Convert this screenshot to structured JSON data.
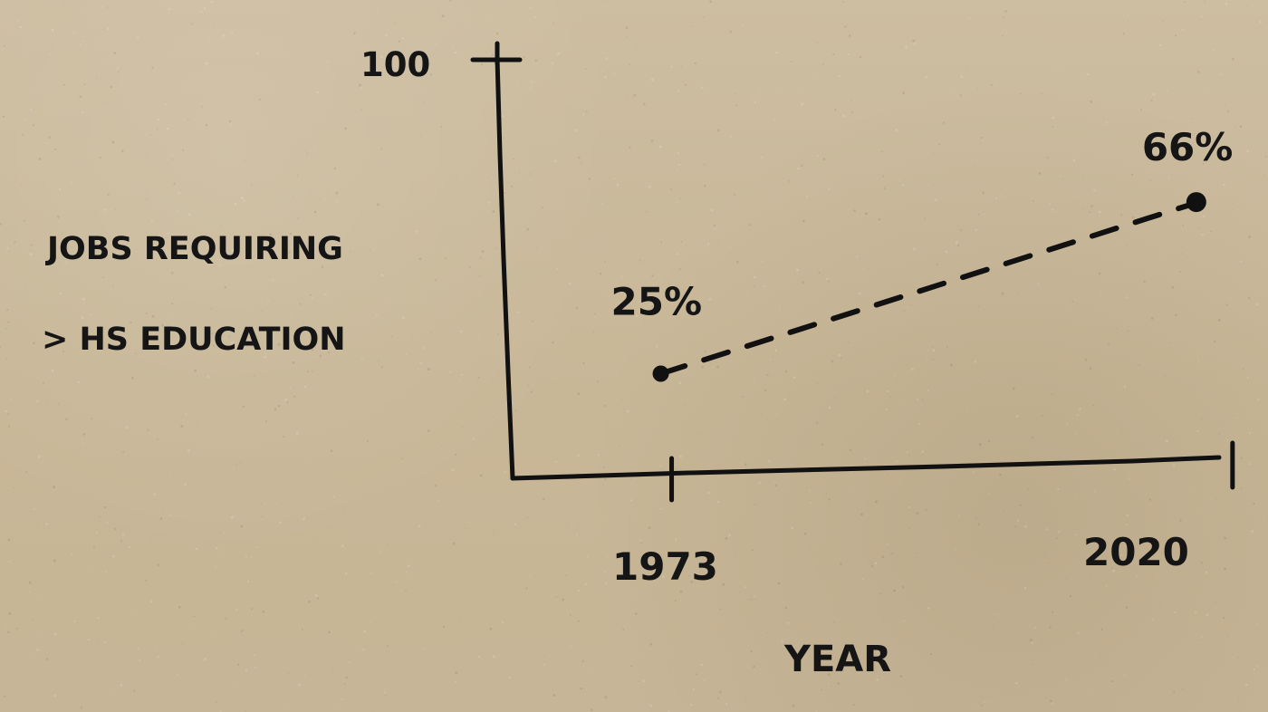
{
  "chart_data": {
    "type": "line",
    "x": [
      1973,
      2020
    ],
    "values": [
      25,
      66
    ],
    "xlabel": "YEAR",
    "ylabel": [
      "JOBS REQUIRING",
      "> HS EDUCATION"
    ],
    "y_tick_labels": [
      "100"
    ],
    "x_tick_labels": [
      "1973",
      "2020"
    ],
    "data_labels": [
      "25%",
      "66%"
    ],
    "ylim": [
      0,
      100
    ],
    "xlim": [
      1960,
      2022
    ],
    "grid": false,
    "line_style": "dashed",
    "colors": {
      "paper": "#c9b89b",
      "ink": "#151515"
    }
  }
}
